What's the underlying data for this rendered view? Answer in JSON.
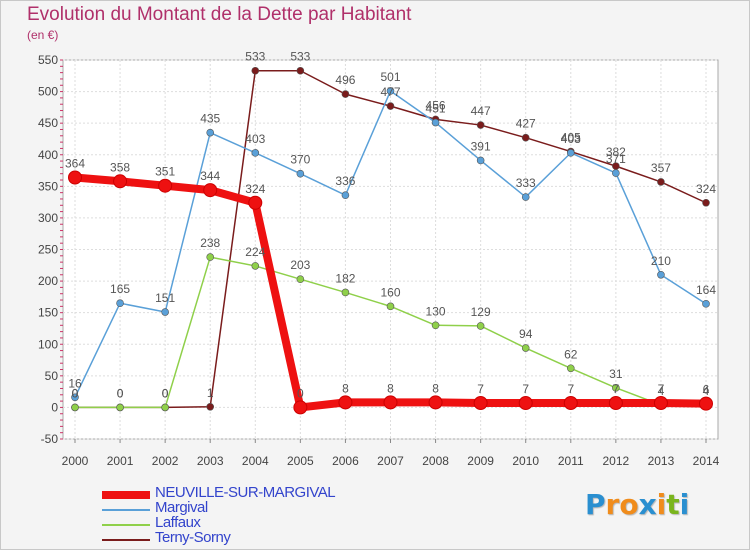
{
  "header": {
    "title": "Evolution du Montant de la Dette par Habitant",
    "unit": "(en €)"
  },
  "logo": {
    "text": "Proxiti",
    "letters": [
      "P",
      "r",
      "o",
      "x",
      "i",
      "t",
      "i"
    ],
    "letter_colors": [
      "#2a8fd0",
      "#f08c1c",
      "#f08c1c",
      "#2a8fd0",
      "#f08c1c",
      "#7ab51d",
      "#2a8fd0"
    ]
  },
  "colors": {
    "title": "#b0306a",
    "axis_text": "#444444",
    "grid": "#dddddd",
    "legend_text": "#3344cc"
  },
  "chart_data": {
    "type": "line",
    "title": "Evolution du Montant de la Dette par Habitant",
    "ylabel": "(en €)",
    "xlabel": "",
    "ylim": [
      -50,
      550
    ],
    "yticks": [
      -50,
      0,
      50,
      100,
      150,
      200,
      250,
      300,
      350,
      400,
      450,
      500,
      550
    ],
    "grid": true,
    "legend_position": "bottom-left",
    "x": [
      "2000",
      "2001",
      "2002",
      "2003",
      "2004",
      "2005",
      "2006",
      "2007",
      "2008",
      "2009",
      "2010",
      "2011",
      "2012",
      "2013",
      "2014"
    ],
    "series": [
      {
        "name": "NEUVILLE-SUR-MARGIVAL",
        "color": "#ee1111",
        "values": [
          364,
          358,
          351,
          344,
          324,
          0,
          8,
          8,
          8,
          7,
          7,
          7,
          7,
          7,
          6
        ],
        "labels": [
          "364",
          "358",
          "351",
          "344",
          "324",
          "0",
          "8",
          "8",
          "8",
          "7",
          "7",
          "7",
          "7",
          "7",
          "6"
        ]
      },
      {
        "name": "Margival",
        "color": "#5aa0d8",
        "values": [
          16,
          165,
          151,
          435,
          403,
          370,
          336,
          501,
          451,
          391,
          333,
          403,
          371,
          210,
          164
        ],
        "labels": [
          "16",
          "165",
          "151",
          "435",
          "403",
          "370",
          "336",
          "501",
          "451",
          "391",
          "333",
          "403",
          "371",
          "210",
          "164"
        ]
      },
      {
        "name": "Laffaux",
        "color": "#8fd04a",
        "values": [
          0,
          0,
          0,
          238,
          224,
          203,
          182,
          160,
          130,
          129,
          94,
          62,
          31,
          4,
          4
        ],
        "labels": [
          "0",
          "0",
          "0",
          "238",
          "224",
          "203",
          "182",
          "160",
          "130",
          "129",
          "94",
          "62",
          "31",
          "4",
          "4"
        ]
      },
      {
        "name": "Terny-Sorny",
        "color": "#7a1c1c",
        "values": [
          0,
          0,
          0,
          1,
          533,
          533,
          496,
          477,
          456,
          447,
          427,
          405,
          382,
          357,
          324
        ],
        "labels": [
          "0",
          "0",
          "0",
          "1",
          "533",
          "533",
          "496",
          "477",
          "456",
          "447",
          "427",
          "405",
          "382",
          "357",
          "324"
        ]
      }
    ]
  }
}
